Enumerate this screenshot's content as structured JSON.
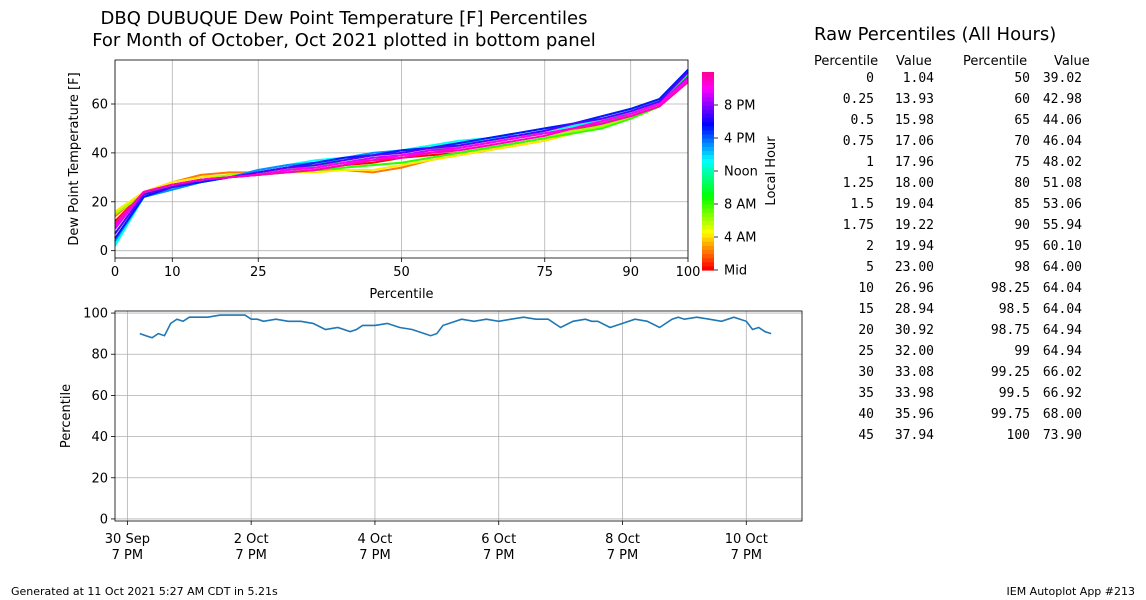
{
  "header": {
    "title_line1": "DBQ DUBUQUE Dew Point Temperature [F] Percentiles",
    "title_line2": "For Month of October, Oct 2021 plotted in bottom panel"
  },
  "footer": {
    "left": "Generated at 11 Oct 2021 5:27 AM CDT in 5.21s",
    "right": "IEM Autoplot App #213"
  },
  "raw": {
    "title": "Raw Percentiles (All Hours)",
    "head_percentile": "Percentile",
    "head_value": "Value",
    "left_rows": [
      {
        "p": "0",
        "v": "1.04"
      },
      {
        "p": "0.25",
        "v": "13.93"
      },
      {
        "p": "0.5",
        "v": "15.98"
      },
      {
        "p": "0.75",
        "v": "17.06"
      },
      {
        "p": "1",
        "v": "17.96"
      },
      {
        "p": "1.25",
        "v": "18.00"
      },
      {
        "p": "1.5",
        "v": "19.04"
      },
      {
        "p": "1.75",
        "v": "19.22"
      },
      {
        "p": "2",
        "v": "19.94"
      },
      {
        "p": "5",
        "v": "23.00"
      },
      {
        "p": "10",
        "v": "26.96"
      },
      {
        "p": "15",
        "v": "28.94"
      },
      {
        "p": "20",
        "v": "30.92"
      },
      {
        "p": "25",
        "v": "32.00"
      },
      {
        "p": "30",
        "v": "33.08"
      },
      {
        "p": "35",
        "v": "33.98"
      },
      {
        "p": "40",
        "v": "35.96"
      },
      {
        "p": "45",
        "v": "37.94"
      }
    ],
    "right_rows": [
      {
        "p": "50",
        "v": "39.02"
      },
      {
        "p": "60",
        "v": "42.98"
      },
      {
        "p": "65",
        "v": "44.06"
      },
      {
        "p": "70",
        "v": "46.04"
      },
      {
        "p": "75",
        "v": "48.02"
      },
      {
        "p": "80",
        "v": "51.08"
      },
      {
        "p": "85",
        "v": "53.06"
      },
      {
        "p": "90",
        "v": "55.94"
      },
      {
        "p": "95",
        "v": "60.10"
      },
      {
        "p": "98",
        "v": "64.00"
      },
      {
        "p": "98.25",
        "v": "64.04"
      },
      {
        "p": "98.5",
        "v": "64.04"
      },
      {
        "p": "98.75",
        "v": "64.94"
      },
      {
        "p": "99",
        "v": "64.94"
      },
      {
        "p": "99.25",
        "v": "66.02"
      },
      {
        "p": "99.5",
        "v": "66.92"
      },
      {
        "p": "99.75",
        "v": "68.00"
      },
      {
        "p": "100",
        "v": "73.90"
      }
    ]
  },
  "chart_data": [
    {
      "type": "line",
      "xlabel": "Percentile",
      "ylabel": "Dew Point Temperature [F]",
      "xlim": [
        0,
        100
      ],
      "ylim": [
        -3,
        78
      ],
      "xticks": [
        0,
        10,
        25,
        50,
        75,
        90,
        100
      ],
      "yticks": [
        0,
        20,
        40,
        60
      ],
      "grid": true,
      "colorbar": {
        "label": "Local Hour",
        "ticks": [
          "Mid",
          "4 AM",
          "8 AM",
          "Noon",
          "4 PM",
          "8 PM"
        ],
        "colormap": "hsv (red - yellow - green - cyan - blue - magenta)"
      },
      "percentiles": [
        0,
        5,
        10,
        15,
        20,
        25,
        30,
        35,
        40,
        45,
        50,
        55,
        60,
        65,
        70,
        75,
        80,
        85,
        90,
        95,
        100
      ],
      "series": [
        {
          "hour": 0,
          "values": [
            12,
            24,
            27,
            29,
            30,
            31,
            32,
            33,
            35,
            36,
            38,
            39,
            40,
            42,
            44,
            46,
            49,
            52,
            55,
            59,
            69
          ]
        },
        {
          "hour": 2,
          "values": [
            14,
            24,
            28,
            31,
            32,
            32,
            32,
            33,
            33,
            32,
            34,
            37,
            39,
            41,
            43,
            45,
            48,
            51,
            54,
            59,
            70
          ]
        },
        {
          "hour": 4,
          "values": [
            16,
            24,
            28,
            30,
            31,
            31,
            32,
            32,
            33,
            33,
            35,
            37,
            39,
            41,
            43,
            45,
            48,
            51,
            54,
            59,
            69
          ]
        },
        {
          "hour": 6,
          "values": [
            15,
            23,
            27,
            29,
            31,
            32,
            32,
            33,
            34,
            35,
            36,
            38,
            40,
            42,
            44,
            46,
            49,
            51,
            55,
            59,
            70
          ]
        },
        {
          "hour": 8,
          "values": [
            11,
            24,
            26,
            28,
            30,
            31,
            32,
            33,
            34,
            35,
            36,
            38,
            40,
            42,
            44,
            46,
            48,
            50,
            54,
            59,
            71
          ]
        },
        {
          "hour": 10,
          "values": [
            7,
            23,
            26,
            28,
            30,
            31,
            33,
            35,
            36,
            38,
            39,
            41,
            43,
            45,
            47,
            48,
            50,
            52,
            56,
            60,
            72
          ]
        },
        {
          "hour": 12,
          "values": [
            3,
            22,
            26,
            28,
            30,
            32,
            34,
            36,
            37,
            39,
            41,
            43,
            44,
            45,
            47,
            49,
            51,
            53,
            57,
            61,
            73
          ]
        },
        {
          "hour": 13,
          "values": [
            2,
            22,
            25,
            28,
            30,
            33,
            35,
            37,
            38,
            39,
            41,
            43,
            45,
            46,
            47,
            49,
            51,
            54,
            57,
            61,
            73
          ]
        },
        {
          "hour": 15,
          "values": [
            4,
            22,
            25,
            28,
            30,
            33,
            35,
            36,
            38,
            40,
            41,
            42,
            44,
            46,
            48,
            50,
            52,
            55,
            58,
            62,
            74
          ]
        },
        {
          "hour": 17,
          "values": [
            5,
            22,
            26,
            28,
            30,
            32,
            34,
            36,
            38,
            39,
            41,
            42,
            44,
            46,
            48,
            50,
            52,
            55,
            58,
            62,
            74
          ]
        },
        {
          "hour": 19,
          "values": [
            7,
            23,
            26,
            29,
            30,
            32,
            34,
            35,
            37,
            39,
            40,
            42,
            43,
            45,
            47,
            49,
            52,
            54,
            57,
            61,
            73
          ]
        },
        {
          "hour": 21,
          "values": [
            9,
            24,
            27,
            29,
            30,
            31,
            33,
            34,
            36,
            38,
            39,
            41,
            42,
            44,
            46,
            48,
            50,
            53,
            56,
            60,
            71
          ]
        },
        {
          "hour": 22,
          "values": [
            10,
            24,
            27,
            29,
            30,
            31,
            33,
            34,
            36,
            37,
            39,
            40,
            42,
            44,
            46,
            48,
            50,
            53,
            56,
            60,
            70
          ]
        },
        {
          "hour": 23,
          "values": [
            11,
            24,
            27,
            29,
            30,
            31,
            32,
            33,
            35,
            37,
            38,
            40,
            41,
            43,
            45,
            47,
            50,
            52,
            55,
            59,
            69
          ]
        }
      ]
    },
    {
      "type": "line",
      "ylabel": "Percentile",
      "ylim": [
        -1,
        101
      ],
      "yticks": [
        0,
        20,
        40,
        60,
        80,
        100
      ],
      "xlim_days": [
        -0.2,
        10.9
      ],
      "xticks": [
        {
          "day": 0,
          "line1": "30 Sep",
          "line2": "7 PM"
        },
        {
          "day": 2,
          "line1": "2 Oct",
          "line2": "7 PM"
        },
        {
          "day": 4,
          "line1": "4 Oct",
          "line2": "7 PM"
        },
        {
          "day": 6,
          "line1": "6 Oct",
          "line2": "7 PM"
        },
        {
          "day": 8,
          "line1": "8 Oct",
          "line2": "7 PM"
        },
        {
          "day": 10,
          "line1": "10 Oct",
          "line2": "7 PM"
        }
      ],
      "grid": true,
      "color": "#1f77b4",
      "x": [
        0.2,
        0.3,
        0.4,
        0.5,
        0.6,
        0.7,
        0.8,
        0.9,
        1.0,
        1.1,
        1.2,
        1.3,
        1.5,
        1.7,
        1.9,
        2.0,
        2.1,
        2.2,
        2.4,
        2.6,
        2.8,
        3.0,
        3.2,
        3.4,
        3.6,
        3.7,
        3.8,
        3.9,
        4.0,
        4.2,
        4.4,
        4.6,
        4.8,
        4.9,
        5.0,
        5.1,
        5.2,
        5.4,
        5.6,
        5.8,
        6.0,
        6.2,
        6.4,
        6.6,
        6.8,
        7.0,
        7.2,
        7.4,
        7.5,
        7.6,
        7.8,
        8.0,
        8.2,
        8.4,
        8.6,
        8.8,
        8.9,
        9.0,
        9.2,
        9.4,
        9.6,
        9.8,
        10.0,
        10.1,
        10.2,
        10.3,
        10.4
      ],
      "y": [
        90,
        89,
        88,
        90,
        89,
        95,
        97,
        96,
        98,
        98,
        98,
        98,
        99,
        99,
        99,
        97,
        97,
        96,
        97,
        96,
        96,
        95,
        92,
        93,
        91,
        92,
        94,
        94,
        94,
        95,
        93,
        92,
        90,
        89,
        90,
        94,
        95,
        97,
        96,
        97,
        96,
        97,
        98,
        97,
        97,
        93,
        96,
        97,
        96,
        96,
        93,
        95,
        97,
        96,
        93,
        97,
        98,
        97,
        98,
        97,
        96,
        98,
        96,
        92,
        93,
        91,
        90
      ]
    }
  ]
}
